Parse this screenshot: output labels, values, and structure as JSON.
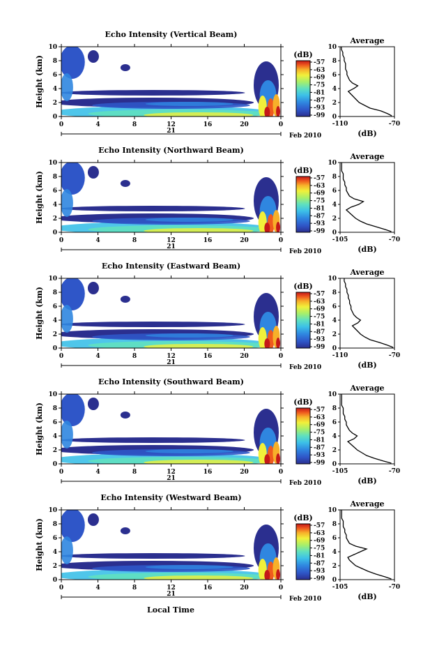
{
  "chart_data": [
    {
      "type": "heatmap",
      "title": "Echo Intensity (Vertical Beam)",
      "ylabel": "Height (km)",
      "ylim": [
        0,
        10
      ],
      "yticks": [
        "0",
        "2",
        "4",
        "6",
        "8",
        "10"
      ],
      "xticks": [
        "0",
        "4",
        "8",
        "12",
        "16",
        "20",
        "0"
      ],
      "date_day": "21",
      "date_label": "Feb 2010",
      "colorbar_unit": "(dB)",
      "colorbar_ticks": [
        "-57",
        "-63",
        "-69",
        "-75",
        "-81",
        "-87",
        "-93",
        "-99"
      ],
      "avg_title": "Average",
      "avg_xticks": [
        "-110",
        "-70"
      ],
      "avg_xlabel": "(dB)",
      "avg_xlim": [
        -110,
        -70
      ],
      "avg_profile": {
        "height_km": [
          0.1,
          0.4,
          0.8,
          1.2,
          1.6,
          2.0,
          2.4,
          2.8,
          3.2,
          3.6,
          4.0,
          4.4,
          4.8,
          5.2,
          5.6,
          6.0,
          6.4,
          6.8,
          7.2,
          7.6,
          8.0,
          8.4,
          8.8,
          9.2,
          9.6,
          10.0
        ],
        "dB": [
          -72,
          -75,
          -80,
          -88,
          -92,
          -96,
          -98,
          -100,
          -102,
          -104,
          -100,
          -97,
          -101,
          -103,
          -104,
          -105,
          -105,
          -106,
          -106,
          -106,
          -107,
          -107,
          -108,
          -108,
          -109,
          -109
        ]
      }
    },
    {
      "type": "heatmap",
      "title": "Echo Intensity (Northward Beam)",
      "ylabel": "Height (km)",
      "ylim": [
        0,
        10
      ],
      "yticks": [
        "0",
        "2",
        "4",
        "6",
        "8",
        "10"
      ],
      "xticks": [
        "0",
        "4",
        "8",
        "12",
        "16",
        "20",
        "0"
      ],
      "date_day": "21",
      "date_label": "Feb 2010",
      "colorbar_unit": "(dB)",
      "colorbar_ticks": [
        "-57",
        "-63",
        "-69",
        "-75",
        "-81",
        "-87",
        "-93",
        "-99"
      ],
      "avg_title": "Average",
      "avg_xticks": [
        "-105",
        "-70"
      ],
      "avg_xlabel": "(dB)",
      "avg_xlim": [
        -105,
        -70
      ],
      "avg_profile": {
        "height_km": [
          0.1,
          0.4,
          0.8,
          1.2,
          1.6,
          2.0,
          2.4,
          2.8,
          3.2,
          3.6,
          4.0,
          4.4,
          4.8,
          5.2,
          5.6,
          6.0,
          6.4,
          6.8,
          7.2,
          7.6,
          8.0,
          8.4,
          8.8,
          9.2,
          9.6,
          10.0
        ],
        "dB": [
          -72,
          -76,
          -82,
          -88,
          -92,
          -95,
          -97,
          -99,
          -101,
          -98,
          -93,
          -90,
          -96,
          -99,
          -100,
          -101,
          -101,
          -102,
          -102,
          -103,
          -103,
          -103,
          -104,
          -104,
          -104,
          -104
        ]
      }
    },
    {
      "type": "heatmap",
      "title": "Echo Intensity (Eastward Beam)",
      "ylabel": "Height (km)",
      "ylim": [
        0,
        10
      ],
      "yticks": [
        "0",
        "2",
        "4",
        "6",
        "8",
        "10"
      ],
      "xticks": [
        "0",
        "4",
        "8",
        "12",
        "16",
        "20",
        "0"
      ],
      "date_day": "21",
      "date_label": "Feb 2010",
      "colorbar_unit": "(dB)",
      "colorbar_ticks": [
        "-57",
        "-63",
        "-69",
        "-75",
        "-81",
        "-87",
        "-93",
        "-99"
      ],
      "avg_title": "Average",
      "avg_xticks": [
        "-110",
        "-70"
      ],
      "avg_xlabel": "(dB)",
      "avg_xlim": [
        -110,
        -70
      ],
      "avg_profile": {
        "height_km": [
          0.1,
          0.4,
          0.8,
          1.2,
          1.6,
          2.0,
          2.4,
          2.8,
          3.2,
          3.6,
          4.0,
          4.4,
          4.8,
          5.2,
          5.6,
          6.0,
          6.4,
          6.8,
          7.2,
          7.6,
          8.0,
          8.4,
          8.8,
          9.2,
          9.6,
          10.0
        ],
        "dB": [
          -71,
          -75,
          -81,
          -88,
          -92,
          -95,
          -97,
          -99,
          -101,
          -97,
          -95,
          -98,
          -100,
          -101,
          -102,
          -102,
          -103,
          -103,
          -104,
          -104,
          -105,
          -105,
          -106,
          -106,
          -107,
          -107
        ]
      }
    },
    {
      "type": "heatmap",
      "title": "Echo Intensity (Southward Beam)",
      "ylabel": "Height (km)",
      "ylim": [
        0,
        10
      ],
      "yticks": [
        "0",
        "2",
        "4",
        "6",
        "8",
        "10"
      ],
      "xticks": [
        "0",
        "4",
        "8",
        "12",
        "16",
        "20",
        "0"
      ],
      "date_day": "21",
      "date_label": "Feb 2010",
      "colorbar_unit": "(dB)",
      "colorbar_ticks": [
        "-57",
        "-63",
        "-69",
        "-75",
        "-81",
        "-87",
        "-93",
        "-99"
      ],
      "avg_title": "Average",
      "avg_xticks": [
        "-105",
        "-70"
      ],
      "avg_xlabel": "(dB)",
      "avg_xlim": [
        -105,
        -70
      ],
      "avg_profile": {
        "height_km": [
          0.1,
          0.4,
          0.8,
          1.2,
          1.6,
          2.0,
          2.4,
          2.8,
          3.2,
          3.6,
          4.0,
          4.4,
          4.8,
          5.2,
          5.6,
          6.0,
          6.4,
          6.8,
          7.2,
          7.6,
          8.0,
          8.4,
          8.8,
          9.2,
          9.6,
          10.0
        ],
        "dB": [
          -72,
          -77,
          -83,
          -88,
          -91,
          -94,
          -96,
          -98,
          -100,
          -96,
          -94,
          -97,
          -99,
          -100,
          -101,
          -101,
          -102,
          -102,
          -103,
          -103,
          -103,
          -104,
          -104,
          -104,
          -104,
          -104
        ]
      }
    },
    {
      "type": "heatmap",
      "title": "Echo Intensity (Westward Beam)",
      "ylabel": "Height (km)",
      "ylim": [
        0,
        10
      ],
      "yticks": [
        "0",
        "2",
        "4",
        "6",
        "8",
        "10"
      ],
      "xticks": [
        "0",
        "4",
        "8",
        "12",
        "16",
        "20",
        "0"
      ],
      "date_day": "21",
      "date_label": "Feb 2010",
      "colorbar_unit": "(dB)",
      "colorbar_ticks": [
        "-57",
        "-63",
        "-69",
        "-75",
        "-81",
        "-87",
        "-93",
        "-99"
      ],
      "avg_title": "Average",
      "avg_xticks": [
        "-105",
        "-70"
      ],
      "avg_xlabel": "(dB)",
      "avg_xlim": [
        -105,
        -70
      ],
      "avg_profile": {
        "height_km": [
          0.1,
          0.4,
          0.8,
          1.2,
          1.6,
          2.0,
          2.4,
          2.8,
          3.2,
          3.6,
          4.0,
          4.4,
          4.8,
          5.2,
          5.6,
          6.0,
          6.4,
          6.8,
          7.2,
          7.6,
          8.0,
          8.4,
          8.8,
          9.2,
          9.6,
          10.0
        ],
        "dB": [
          -72,
          -76,
          -82,
          -87,
          -91,
          -95,
          -97,
          -99,
          -100,
          -96,
          -92,
          -88,
          -95,
          -99,
          -100,
          -101,
          -101,
          -102,
          -102,
          -103,
          -103,
          -103,
          -104,
          -104,
          -104,
          -104
        ]
      }
    }
  ],
  "xlabel": "Local Time",
  "colormap": [
    "#2b2f8f",
    "#2f56c8",
    "#2f86e0",
    "#3cc0e8",
    "#5fe0c0",
    "#a7ef6a",
    "#f1f03a",
    "#f7b02a",
    "#ef5a1e",
    "#c41818"
  ]
}
